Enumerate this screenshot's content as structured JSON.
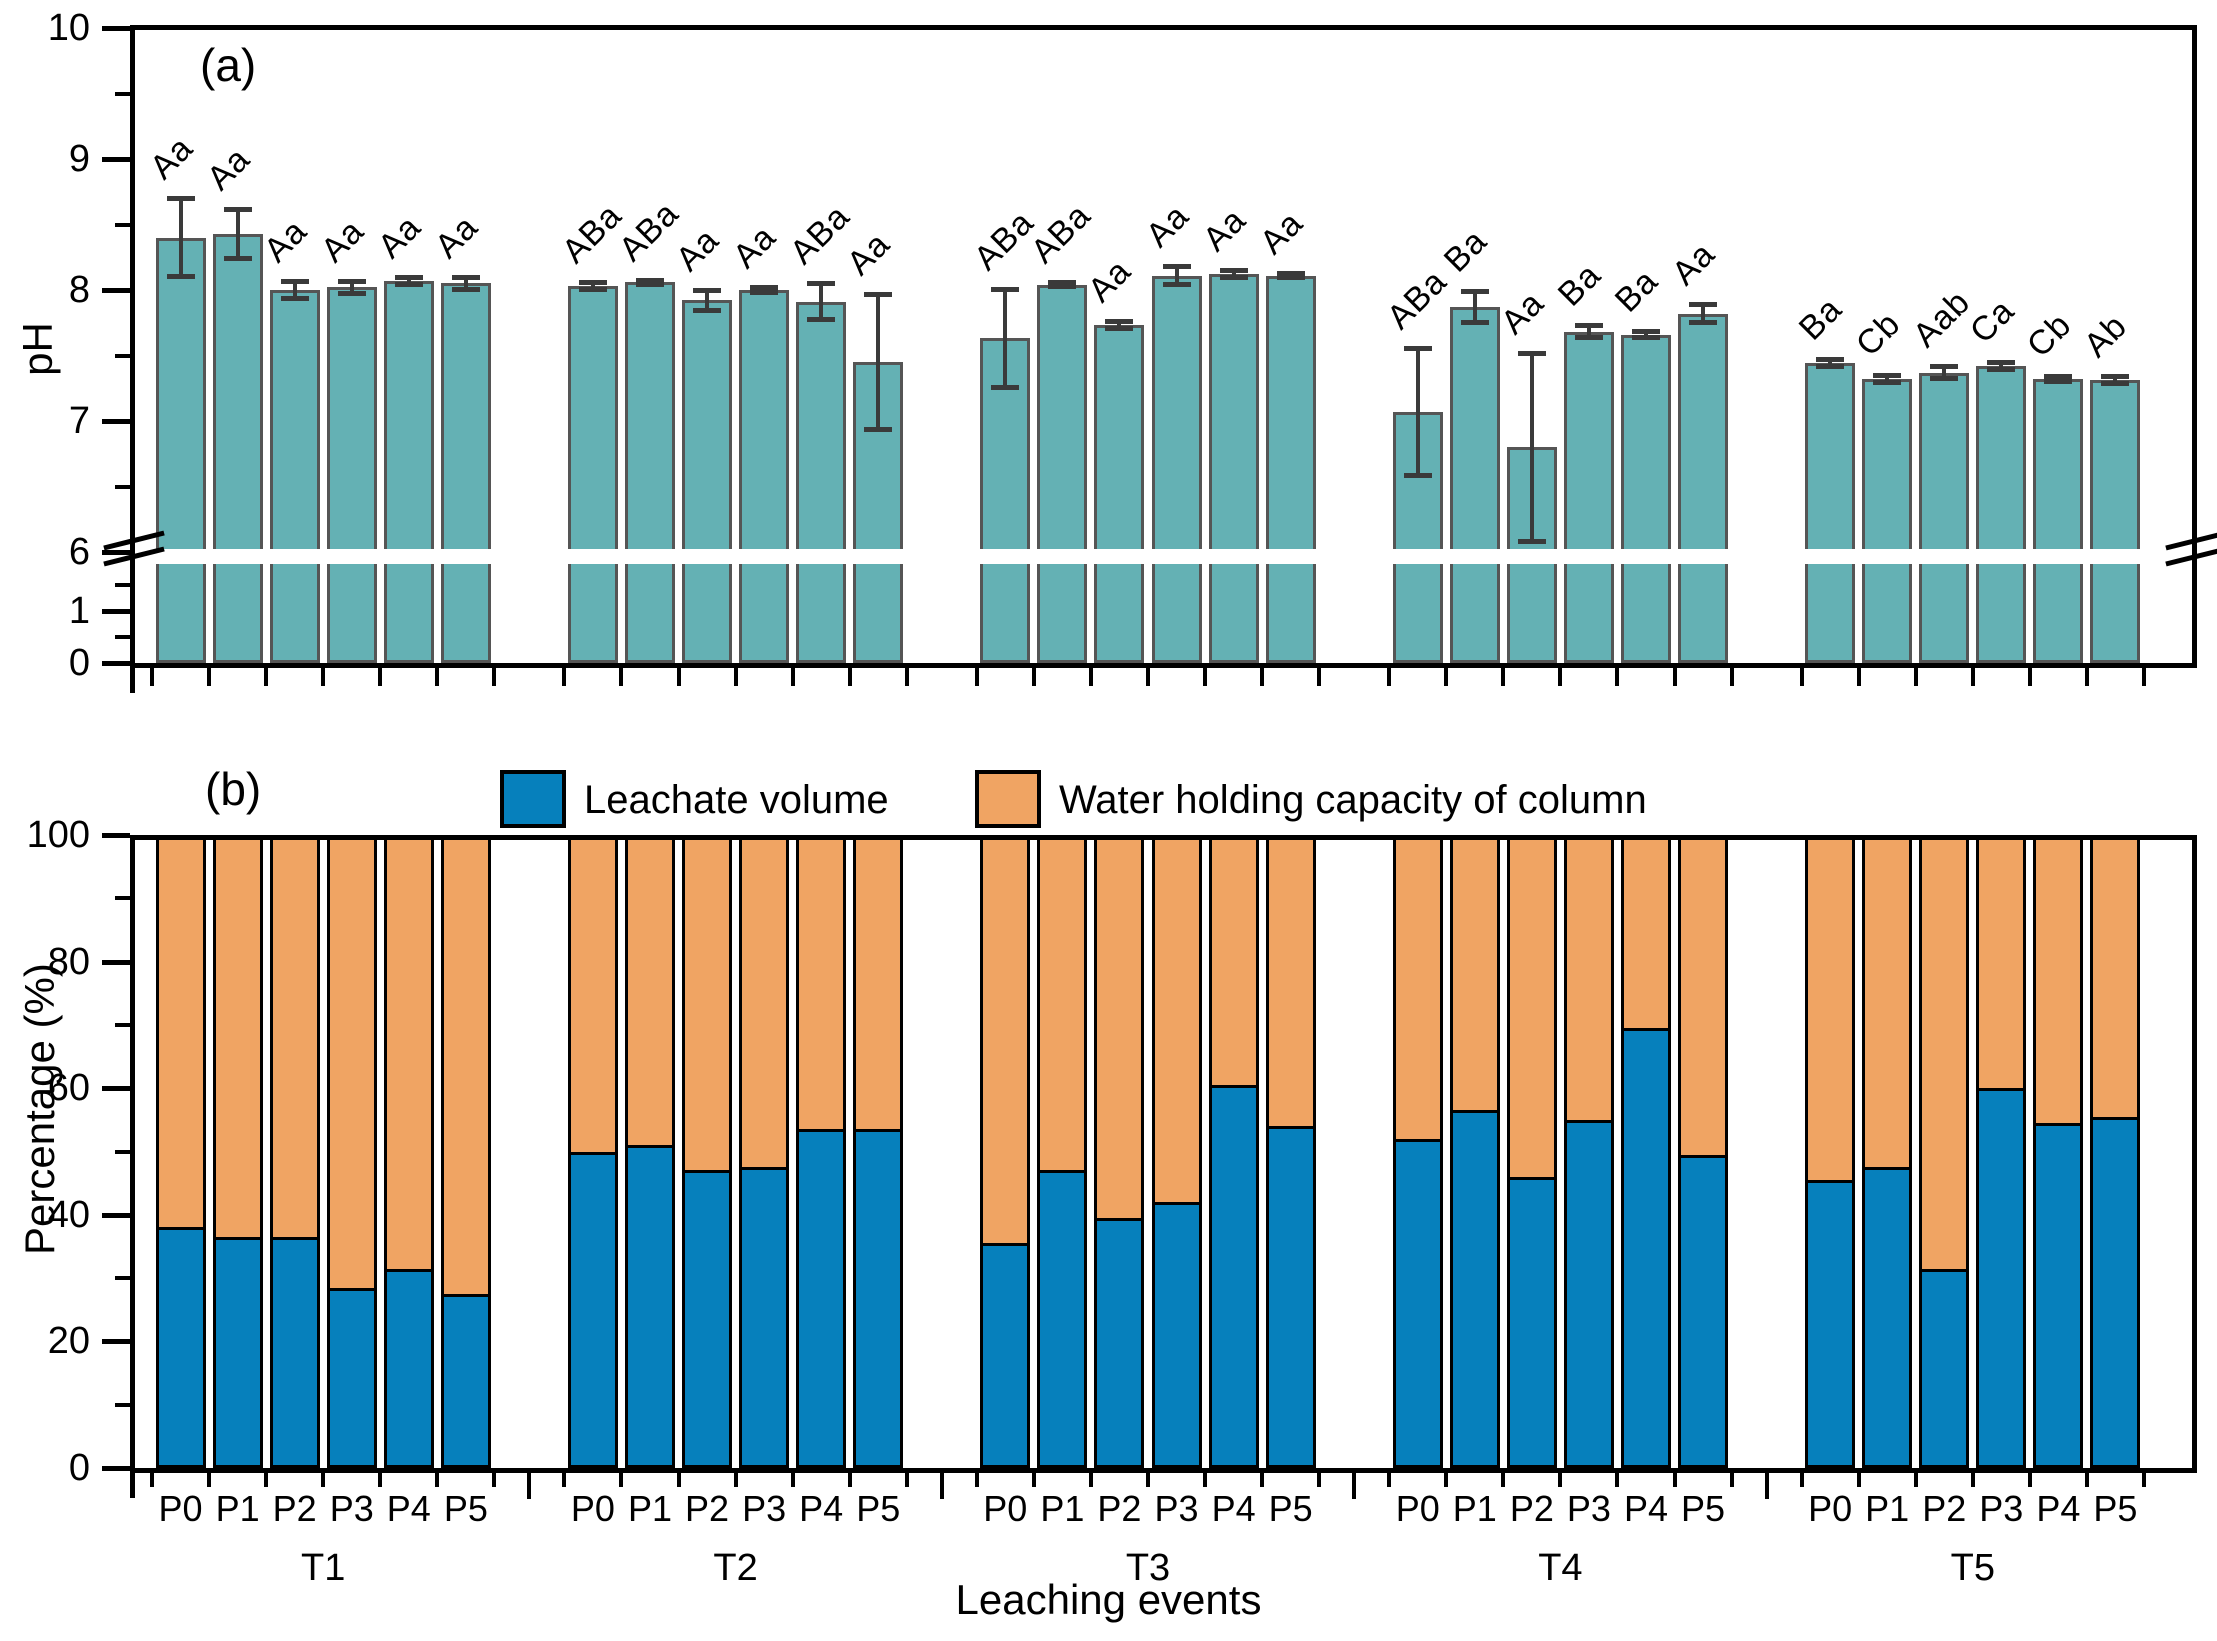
{
  "figure": {
    "panel_a_label": "(a)",
    "panel_b_label": "(b)",
    "ph_axis_title": "pH",
    "percentage_axis_title": "Percentage (%)",
    "x_axis_title": "Leaching events"
  },
  "colors": {
    "ph_bar": "#64B1B4",
    "ph_bar_border": "#555555",
    "leachate_blue": "#0680BC",
    "water_holding_orange": "#F0A463",
    "error_bar": "#3a3a3a"
  },
  "chart_data": [
    {
      "id": "ph_panel",
      "type": "bar",
      "panel_label": "(a)",
      "ylabel": "pH",
      "title": "",
      "y_axis": {
        "upper_major_ticks": [
          10,
          9,
          8,
          7,
          6
        ],
        "upper_minor_ticks": [
          9.5,
          8.5,
          7.5,
          6.5
        ],
        "lower_major_ticks": [
          1,
          0
        ],
        "lower_minor_ticks": [
          1.5,
          0.5
        ],
        "axis_break": "between 1.5 and 6"
      },
      "groups": [
        "T1",
        "T2",
        "T3",
        "T4",
        "T5"
      ],
      "categories": [
        "P0",
        "P1",
        "P2",
        "P3",
        "P4",
        "P5"
      ],
      "series": [
        {
          "group": "T1",
          "values": [
            8.4,
            8.43,
            8.0,
            8.02,
            8.07,
            8.05
          ],
          "errors": [
            0.3,
            0.19,
            0.07,
            0.05,
            0.03,
            0.05
          ],
          "letters": [
            "Aa",
            "Aa",
            "Aa",
            "Aa",
            "Aa",
            "Aa"
          ]
        },
        {
          "group": "T2",
          "values": [
            8.03,
            8.06,
            7.92,
            8.0,
            7.91,
            7.45
          ],
          "errors": [
            0.03,
            0.02,
            0.08,
            0.02,
            0.14,
            0.52
          ],
          "letters": [
            "ABa",
            "ABa",
            "Aa",
            "Aa",
            "ABa",
            "Aa"
          ]
        },
        {
          "group": "T3",
          "values": [
            7.63,
            8.04,
            7.73,
            8.11,
            8.12,
            8.11
          ],
          "errors": [
            0.38,
            0.02,
            0.03,
            0.07,
            0.03,
            0.02
          ],
          "letters": [
            "ABa",
            "ABa",
            "Aa",
            "Aa",
            "Aa",
            "Aa"
          ]
        },
        {
          "group": "T4",
          "values": [
            7.07,
            7.87,
            6.8,
            7.68,
            7.66,
            7.82
          ],
          "errors": [
            0.49,
            0.12,
            0.72,
            0.05,
            0.03,
            0.07
          ],
          "letters": [
            "ABa",
            "Ba",
            "Aa",
            "Ba",
            "Ba",
            "Aa"
          ]
        },
        {
          "group": "T5",
          "values": [
            7.44,
            7.32,
            7.37,
            7.42,
            7.32,
            7.31
          ],
          "errors": [
            0.03,
            0.03,
            0.05,
            0.03,
            0.02,
            0.03
          ],
          "letters": [
            "Ba",
            "Cb",
            "Aab",
            "Ca",
            "Cb",
            "Ab"
          ]
        }
      ]
    },
    {
      "id": "percentage_panel",
      "type": "bar",
      "panel_label": "(b)",
      "ylabel": "Percentage (%)",
      "xlabel": "Leaching events",
      "ylim": [
        0,
        100
      ],
      "y_major_ticks": [
        0,
        20,
        40,
        60,
        80,
        100
      ],
      "y_minor_ticks": [
        10,
        30,
        50,
        70,
        90
      ],
      "stacked": true,
      "legend": [
        {
          "label": "Leachate volume",
          "color": "#0680BC"
        },
        {
          "label": "Water holding capacity of column",
          "color": "#F0A463"
        }
      ],
      "groups": [
        "T1",
        "T2",
        "T3",
        "T4",
        "T5"
      ],
      "categories": [
        "P0",
        "P1",
        "P2",
        "P3",
        "P4",
        "P5"
      ],
      "series": [
        {
          "group": "T1",
          "leachate_volume": [
            38.0,
            36.5,
            36.5,
            28.5,
            31.5,
            27.5
          ],
          "water_holding": [
            62.0,
            63.5,
            63.5,
            71.5,
            68.5,
            72.5
          ]
        },
        {
          "group": "T2",
          "leachate_volume": [
            50.0,
            51.0,
            47.0,
            47.5,
            53.5,
            53.5
          ],
          "water_holding": [
            50.0,
            49.0,
            53.0,
            52.5,
            46.5,
            46.5
          ]
        },
        {
          "group": "T3",
          "leachate_volume": [
            35.5,
            47.0,
            39.5,
            42.0,
            60.5,
            54.0
          ],
          "water_holding": [
            64.5,
            53.0,
            60.5,
            58.0,
            39.5,
            46.0
          ]
        },
        {
          "group": "T4",
          "leachate_volume": [
            52.0,
            56.5,
            46.0,
            55.0,
            69.5,
            49.5
          ],
          "water_holding": [
            48.0,
            43.5,
            54.0,
            45.0,
            30.5,
            50.5
          ]
        },
        {
          "group": "T5",
          "leachate_volume": [
            45.5,
            47.5,
            31.5,
            60.0,
            54.5,
            55.5
          ],
          "water_holding": [
            54.5,
            52.5,
            68.5,
            40.0,
            45.5,
            44.5
          ]
        }
      ]
    }
  ]
}
